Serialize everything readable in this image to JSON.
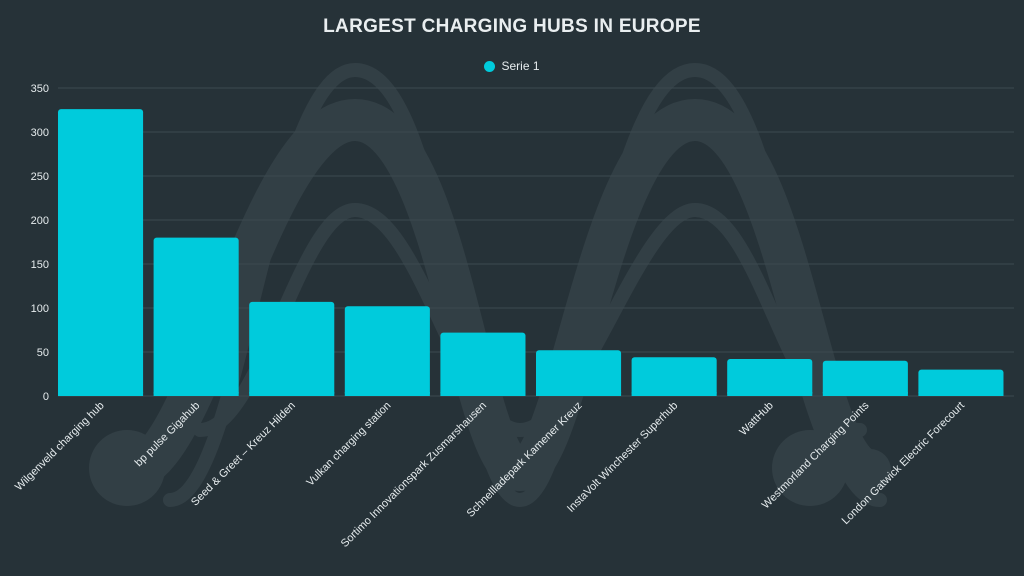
{
  "colors": {
    "background": "#263238",
    "bar": "#00cbdc",
    "grid": "#3c4a50",
    "text": "#e6ecee"
  },
  "chart_data": {
    "type": "bar",
    "title": "LARGEST CHARGING HUBS IN EUROPE",
    "legend_position": "top-center",
    "grid": true,
    "ylim": [
      0,
      350
    ],
    "y_ticks": [
      0,
      50,
      100,
      150,
      200,
      250,
      300,
      350
    ],
    "categories": [
      "Wilgenveld charging hub",
      "bp pulse Gigahub",
      "Seed & Greet – Kreuz Hilden",
      "Vulkan charging station",
      "Sortimo Innovationspark Zusmarshausen",
      "Schnellladepark Kamener Kreuz",
      "InstaVolt Winchester Superhub",
      "WattHub",
      "Westmorland Charging Points",
      "London Gatwick Electric Forecourt"
    ],
    "series": [
      {
        "name": "Serie 1",
        "values": [
          326,
          180,
          107,
          102,
          72,
          52,
          44,
          42,
          40,
          30
        ]
      }
    ]
  }
}
